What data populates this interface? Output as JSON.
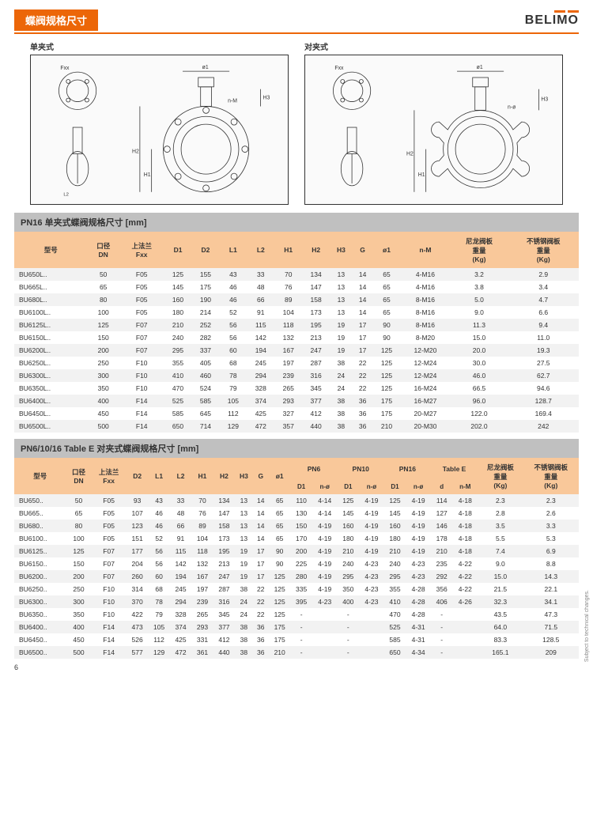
{
  "page": {
    "title": "蝶阀规格尺寸",
    "logo": "BELIMO",
    "page_number": "6",
    "side_note": "Subject to technical changes."
  },
  "diagrams": {
    "left_label": "单夹式",
    "right_label": "对夹式",
    "annotations": {
      "fxx": "Fxx",
      "o1": "ø1",
      "nm": "n-M",
      "no": "n-ø",
      "h1": "H1",
      "h2": "H2",
      "h3": "H3",
      "l1": "L1",
      "l2": "L2",
      "d1": "D1",
      "d2": "D2"
    }
  },
  "table1": {
    "section_title": "PN16 单夹式蝶阀规格尺寸 [mm]",
    "headers": [
      "型号",
      "口径\nDN",
      "上法兰\nFxx",
      "D1",
      "D2",
      "L1",
      "L2",
      "H1",
      "H2",
      "H3",
      "G",
      "ø1",
      "n-M",
      "尼龙阀板\n重量\n(Kg)",
      "不锈钢阀板\n重量\n(Kg)"
    ],
    "rows": [
      [
        "BU650L..",
        "50",
        "F05",
        "125",
        "155",
        "43",
        "33",
        "70",
        "134",
        "13",
        "14",
        "65",
        "4-M16",
        "3.2",
        "2.9"
      ],
      [
        "BU665L..",
        "65",
        "F05",
        "145",
        "175",
        "46",
        "48",
        "76",
        "147",
        "13",
        "14",
        "65",
        "4-M16",
        "3.8",
        "3.4"
      ],
      [
        "BU680L..",
        "80",
        "F05",
        "160",
        "190",
        "46",
        "66",
        "89",
        "158",
        "13",
        "14",
        "65",
        "8-M16",
        "5.0",
        "4.7"
      ],
      [
        "BU6100L..",
        "100",
        "F05",
        "180",
        "214",
        "52",
        "91",
        "104",
        "173",
        "13",
        "14",
        "65",
        "8-M16",
        "9.0",
        "6.6"
      ],
      [
        "BU6125L..",
        "125",
        "F07",
        "210",
        "252",
        "56",
        "115",
        "118",
        "195",
        "19",
        "17",
        "90",
        "8-M16",
        "11.3",
        "9.4"
      ],
      [
        "BU6150L..",
        "150",
        "F07",
        "240",
        "282",
        "56",
        "142",
        "132",
        "213",
        "19",
        "17",
        "90",
        "8-M20",
        "15.0",
        "11.0"
      ],
      [
        "BU6200L..",
        "200",
        "F07",
        "295",
        "337",
        "60",
        "194",
        "167",
        "247",
        "19",
        "17",
        "125",
        "12-M20",
        "20.0",
        "19.3"
      ],
      [
        "BU6250L..",
        "250",
        "F10",
        "355",
        "405",
        "68",
        "245",
        "197",
        "287",
        "38",
        "22",
        "125",
        "12-M24",
        "30.0",
        "27.5"
      ],
      [
        "BU6300L..",
        "300",
        "F10",
        "410",
        "460",
        "78",
        "294",
        "239",
        "316",
        "24",
        "22",
        "125",
        "12-M24",
        "46.0",
        "62.7"
      ],
      [
        "BU6350L..",
        "350",
        "F10",
        "470",
        "524",
        "79",
        "328",
        "265",
        "345",
        "24",
        "22",
        "125",
        "16-M24",
        "66.5",
        "94.6"
      ],
      [
        "BU6400L..",
        "400",
        "F14",
        "525",
        "585",
        "105",
        "374",
        "293",
        "377",
        "38",
        "36",
        "175",
        "16-M27",
        "96.0",
        "128.7"
      ],
      [
        "BU6450L..",
        "450",
        "F14",
        "585",
        "645",
        "112",
        "425",
        "327",
        "412",
        "38",
        "36",
        "175",
        "20-M27",
        "122.0",
        "169.4"
      ],
      [
        "BU6500L..",
        "500",
        "F14",
        "650",
        "714",
        "129",
        "472",
        "357",
        "440",
        "38",
        "36",
        "210",
        "20-M30",
        "202.0",
        "242"
      ]
    ]
  },
  "table2": {
    "section_title": "PN6/10/16 Table E 对夹式蝶阀规格尺寸 [mm]",
    "top_headers": [
      "型号",
      "口径\nDN",
      "上法兰\nFxx",
      "D2",
      "L1",
      "L2",
      "H1",
      "H2",
      "H3",
      "G",
      "ø1",
      "PN6",
      "PN10",
      "PN16",
      "Table E",
      "尼龙阀板\n重量\n(Kg)",
      "不锈钢阀板\n重量\n(Kg)"
    ],
    "sub_headers": [
      "D1",
      "n-ø",
      "D1",
      "n-ø",
      "D1",
      "n-ø",
      "d",
      "n-M"
    ],
    "rows": [
      [
        "BU650..",
        "50",
        "F05",
        "93",
        "43",
        "33",
        "70",
        "134",
        "13",
        "14",
        "65",
        "110",
        "4-14",
        "125",
        "4-19",
        "125",
        "4-19",
        "114",
        "4-18",
        "2.3",
        "2.3"
      ],
      [
        "BU665..",
        "65",
        "F05",
        "107",
        "46",
        "48",
        "76",
        "147",
        "13",
        "14",
        "65",
        "130",
        "4-14",
        "145",
        "4-19",
        "145",
        "4-19",
        "127",
        "4-18",
        "2.8",
        "2.6"
      ],
      [
        "BU680..",
        "80",
        "F05",
        "123",
        "46",
        "66",
        "89",
        "158",
        "13",
        "14",
        "65",
        "150",
        "4-19",
        "160",
        "4-19",
        "160",
        "4-19",
        "146",
        "4-18",
        "3.5",
        "3.3"
      ],
      [
        "BU6100..",
        "100",
        "F05",
        "151",
        "52",
        "91",
        "104",
        "173",
        "13",
        "14",
        "65",
        "170",
        "4-19",
        "180",
        "4-19",
        "180",
        "4-19",
        "178",
        "4-18",
        "5.5",
        "5.3"
      ],
      [
        "BU6125..",
        "125",
        "F07",
        "177",
        "56",
        "115",
        "118",
        "195",
        "19",
        "17",
        "90",
        "200",
        "4-19",
        "210",
        "4-19",
        "210",
        "4-19",
        "210",
        "4-18",
        "7.4",
        "6.9"
      ],
      [
        "BU6150..",
        "150",
        "F07",
        "204",
        "56",
        "142",
        "132",
        "213",
        "19",
        "17",
        "90",
        "225",
        "4-19",
        "240",
        "4-23",
        "240",
        "4-23",
        "235",
        "4-22",
        "9.0",
        "8.8"
      ],
      [
        "BU6200..",
        "200",
        "F07",
        "260",
        "60",
        "194",
        "167",
        "247",
        "19",
        "17",
        "125",
        "280",
        "4-19",
        "295",
        "4-23",
        "295",
        "4-23",
        "292",
        "4-22",
        "15.0",
        "14.3"
      ],
      [
        "BU6250..",
        "250",
        "F10",
        "314",
        "68",
        "245",
        "197",
        "287",
        "38",
        "22",
        "125",
        "335",
        "4-19",
        "350",
        "4-23",
        "355",
        "4-28",
        "356",
        "4-22",
        "21.5",
        "22.1"
      ],
      [
        "BU6300..",
        "300",
        "F10",
        "370",
        "78",
        "294",
        "239",
        "316",
        "24",
        "22",
        "125",
        "395",
        "4-23",
        "400",
        "4-23",
        "410",
        "4-28",
        "406",
        "4-26",
        "32.3",
        "34.1"
      ],
      [
        "BU6350..",
        "350",
        "F10",
        "422",
        "79",
        "328",
        "265",
        "345",
        "24",
        "22",
        "125",
        "-",
        "",
        "-",
        "",
        "470",
        "4-28",
        "-",
        "",
        "43.5",
        "47.3"
      ],
      [
        "BU6400..",
        "400",
        "F14",
        "473",
        "105",
        "374",
        "293",
        "377",
        "38",
        "36",
        "175",
        "-",
        "",
        "-",
        "",
        "525",
        "4-31",
        "-",
        "",
        "64.0",
        "71.5"
      ],
      [
        "BU6450..",
        "450",
        "F14",
        "526",
        "112",
        "425",
        "331",
        "412",
        "38",
        "36",
        "175",
        "-",
        "",
        "-",
        "",
        "585",
        "4-31",
        "-",
        "",
        "83.3",
        "128.5"
      ],
      [
        "BU6500..",
        "500",
        "F14",
        "577",
        "129",
        "472",
        "361",
        "440",
        "38",
        "36",
        "210",
        "-",
        "",
        "-",
        "",
        "650",
        "4-34",
        "-",
        "",
        "165.1",
        "209"
      ]
    ]
  }
}
